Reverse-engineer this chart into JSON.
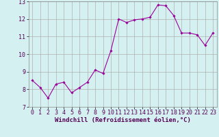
{
  "x": [
    0,
    1,
    2,
    3,
    4,
    5,
    6,
    7,
    8,
    9,
    10,
    11,
    12,
    13,
    14,
    15,
    16,
    17,
    18,
    19,
    20,
    21,
    22,
    23
  ],
  "y": [
    8.5,
    8.1,
    7.5,
    8.3,
    8.4,
    7.8,
    8.1,
    8.4,
    9.1,
    8.9,
    10.2,
    12.0,
    11.8,
    11.95,
    12.0,
    12.1,
    12.8,
    12.75,
    12.2,
    11.2,
    11.2,
    11.1,
    10.5,
    11.2
  ],
  "line_color": "#990099",
  "marker_color": "#990099",
  "bg_color": "#d5f0f0",
  "grid_color": "#b0b0b0",
  "xlabel": "Windchill (Refroidissement éolien,°C)",
  "xlabel_fontsize": 6.5,
  "tick_fontsize": 6.0,
  "ylim": [
    7,
    13
  ],
  "xlim": [
    -0.5,
    23.5
  ],
  "yticks": [
    7,
    8,
    9,
    10,
    11,
    12,
    13
  ],
  "xticks": [
    0,
    1,
    2,
    3,
    4,
    5,
    6,
    7,
    8,
    9,
    10,
    11,
    12,
    13,
    14,
    15,
    16,
    17,
    18,
    19,
    20,
    21,
    22,
    23
  ]
}
